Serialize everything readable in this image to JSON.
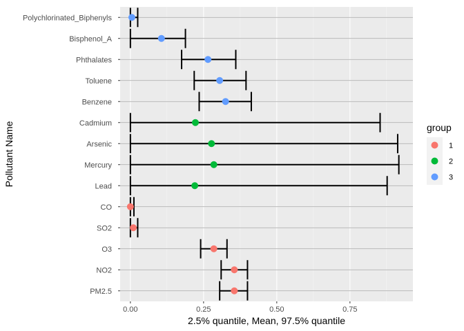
{
  "chart_data": {
    "type": "errorbar-dot",
    "xlabel": "2.5% quantile, Mean, 97.5% quantile",
    "ylabel": "Pollutant Name",
    "xlim": [
      -0.035,
      0.965
    ],
    "x_ticks": [
      0,
      0.25,
      0.5,
      0.75
    ],
    "x_tick_labels": [
      "0.00",
      "0.25",
      "0.50",
      "0.75"
    ],
    "grid": true,
    "legend": {
      "title": "group",
      "placement": "right",
      "entries": [
        {
          "label": "1",
          "color": "#F8766D"
        },
        {
          "label": "2",
          "color": "#00BA38"
        },
        {
          "label": "3",
          "color": "#619CFF"
        }
      ]
    },
    "rows": [
      {
        "name": "Polychlorinated_Biphenyls",
        "group": "3",
        "low": 0.0,
        "mean": 0.005,
        "high": 0.025
      },
      {
        "name": "Bisphenol_A",
        "group": "3",
        "low": 0.0,
        "mean": 0.106,
        "high": 0.188
      },
      {
        "name": "Phthalates",
        "group": "3",
        "low": 0.175,
        "mean": 0.265,
        "high": 0.36
      },
      {
        "name": "Toluene",
        "group": "3",
        "low": 0.218,
        "mean": 0.305,
        "high": 0.395
      },
      {
        "name": "Benzene",
        "group": "3",
        "low": 0.235,
        "mean": 0.325,
        "high": 0.413
      },
      {
        "name": "Cadmium",
        "group": "2",
        "low": 0.0,
        "mean": 0.222,
        "high": 0.853
      },
      {
        "name": "Arsenic",
        "group": "2",
        "low": 0.0,
        "mean": 0.277,
        "high": 0.913
      },
      {
        "name": "Mercury",
        "group": "2",
        "low": 0.0,
        "mean": 0.285,
        "high": 0.917
      },
      {
        "name": "Lead",
        "group": "2",
        "low": 0.0,
        "mean": 0.22,
        "high": 0.877
      },
      {
        "name": "CO",
        "group": "1",
        "low": 0.0,
        "mean": 0.0,
        "high": 0.012
      },
      {
        "name": "SO2",
        "group": "1",
        "low": 0.0,
        "mean": 0.01,
        "high": 0.025
      },
      {
        "name": "O3",
        "group": "1",
        "low": 0.24,
        "mean": 0.285,
        "high": 0.33
      },
      {
        "name": "NO2",
        "group": "1",
        "low": 0.31,
        "mean": 0.355,
        "high": 0.4
      },
      {
        "name": "PM2.5",
        "group": "1",
        "low": 0.305,
        "mean": 0.355,
        "high": 0.4
      }
    ]
  }
}
